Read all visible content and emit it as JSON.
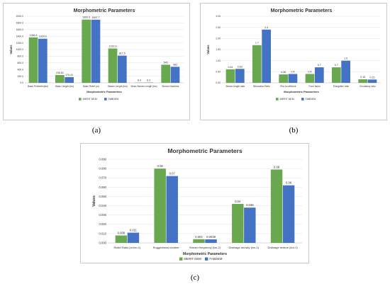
{
  "colors": {
    "merit": "#6aa84f",
    "fabdem": "#4472c4",
    "grid": "#e2e2e2",
    "axis": "#bfbfbf"
  },
  "chart_data": [
    {
      "type": "bar",
      "caption": "(a)",
      "title": "Morphometric Parameters",
      "xlabel": "Morphometric Parameters",
      "ylabel": "Values",
      "ylim": [
        0,
        2000
      ],
      "yticks": [
        "0.0",
        "200.0",
        "400.0",
        "600.0",
        "800.0",
        "1000.0",
        "1200.0",
        "1400.0",
        "1600.0",
        "1800.0",
        "2000.0"
      ],
      "categories": [
        "Basin Perimeter(km)",
        "Basin Length (km)",
        "Basin Relief (m)",
        "Stream Length (km)",
        "Mean Stream Length (km)",
        "Stream Numbers"
      ],
      "series": [
        {
          "name": "MERIT DEM",
          "values": [
            1366.5,
            236.82,
            1900.0,
            1032.6,
            8.4,
            545
          ],
          "labels": [
            "1366.5",
            "236.82",
            "1900.0",
            "1032.6",
            "8.4",
            "545"
          ]
        },
        {
          "name": "FABDEM",
          "values": [
            1324.9,
            170.41,
            1897.7,
            817.5,
            8.3,
            482
          ],
          "labels": [
            "1324.9",
            "170.41",
            "1897.7",
            "817.5",
            "8.3",
            "482"
          ]
        }
      ],
      "grid": true,
      "legend": "bottom"
    },
    {
      "type": "bar",
      "caption": "(b)",
      "title": "Morphometric Parameters",
      "xlabel": "Morphometric Parameters",
      "ylabel": "Values",
      "ylim": [
        0,
        3.0
      ],
      "yticks": [
        "0.00",
        "0.50",
        "1.00",
        "1.50",
        "2.00",
        "2.50",
        "3.00"
      ],
      "categories": [
        "Stream length ratio",
        "Bifurcation Ratio",
        "Rho co-efficient",
        "Form factor",
        "Elongation ratio",
        "Circulatory ratio"
      ],
      "series": [
        {
          "name": "MERIT DEM",
          "values": [
            0.61,
            1.7,
            0.38,
            0.4,
            0.7,
            0.16
          ],
          "labels": [
            "0.61",
            "1.7",
            "0.38",
            "0.4",
            "0.7",
            "0.16"
          ]
        },
        {
          "name": "FABDEM",
          "values": [
            0.63,
            2.4,
            0.4,
            0.7,
            1.0,
            0.15
          ],
          "labels": [
            "0.63",
            "2.4",
            "0.4",
            "0.7",
            "1.0",
            "0.15"
          ]
        }
      ],
      "grid": true,
      "legend": "bottom"
    },
    {
      "type": "bar",
      "caption": "(c)",
      "title": "Morphometric Parameters",
      "xlabel": "Morphometric Parameters",
      "ylabel": "Values",
      "ylim": [
        0,
        0.09
      ],
      "yticks": [
        "0.000",
        "0.010",
        "0.020",
        "0.030",
        "0.040",
        "0.050",
        "0.060",
        "0.070",
        "0.080",
        "0.090"
      ],
      "categories": [
        "Relief Ratio (m.km-1)",
        "Ruggedness number",
        "Stream frequency (km-2)",
        "Drainage density (km-1)",
        "Drainage texture (km-1)"
      ],
      "series": [
        {
          "name": "MERIT DEM",
          "values": [
            0.008,
            0.08,
            0.004,
            0.042,
            0.079
          ],
          "labels": [
            "0.008",
            "0.08",
            "0.004",
            "0.04",
            "0.08"
          ]
        },
        {
          "name": "FABDEM",
          "values": [
            0.011,
            0.072,
            0.0038,
            0.038,
            0.062
          ],
          "labels": [
            "0.011",
            "0.07",
            "0.0038",
            "0.038",
            "0.06"
          ]
        }
      ],
      "grid": true,
      "legend": "bottom"
    }
  ]
}
